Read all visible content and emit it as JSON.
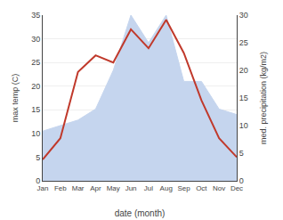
{
  "chart_data": {
    "type": "line",
    "categories": [
      "Jan",
      "Feb",
      "Mar",
      "Apr",
      "May",
      "Jun",
      "Jul",
      "Aug",
      "Sep",
      "Oct",
      "Nov",
      "Dec"
    ],
    "series": [
      {
        "type": "area",
        "axis": "y2",
        "color": "#c5d5ee",
        "values": [
          9.0,
          10.0,
          11.0,
          13.0,
          20.0,
          30.0,
          25.0,
          30.0,
          18.0,
          18.0,
          13.0,
          12.0
        ]
      },
      {
        "type": "line",
        "axis": "y",
        "color": "#c0392b",
        "values": [
          4.5,
          9.0,
          23.0,
          26.5,
          25.0,
          32.0,
          28.0,
          34.0,
          27.0,
          17.0,
          9.0,
          5.0
        ]
      }
    ],
    "xlabel": "date (month)",
    "ylabel": "max temp (C)",
    "y2label": "med. precipitation (kg/m2)",
    "ylim": [
      0,
      35
    ],
    "yticks": [
      0,
      5,
      10,
      15,
      20,
      25,
      30,
      35
    ],
    "y2lim": [
      0,
      30
    ],
    "y2ticks": [
      0,
      5,
      10,
      15,
      20,
      25,
      30
    ],
    "grid": true
  }
}
